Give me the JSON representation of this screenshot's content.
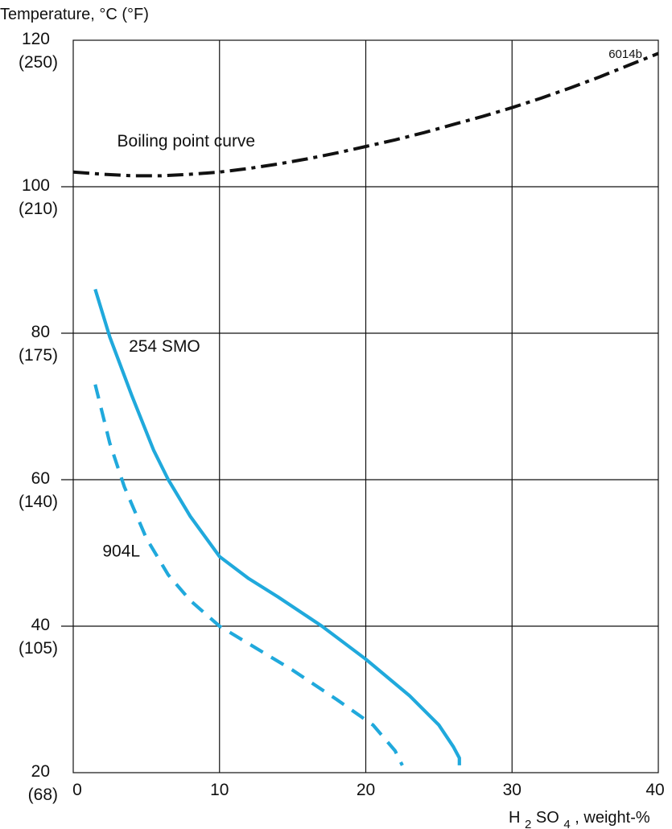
{
  "chart_data": {
    "type": "line",
    "title": "",
    "ylabel": "Temperature, °C (°F)",
    "xlabel_parts": {
      "prefix": "H",
      "subscript_1": "2",
      "middle": "SO",
      "subscript_2": "4",
      "suffix": ", weight-%"
    },
    "xlim": [
      0,
      40
    ],
    "ylim": [
      20,
      120
    ],
    "grid": true,
    "x_ticks": [
      {
        "value": 0,
        "label": "0"
      },
      {
        "value": 10,
        "label": "10"
      },
      {
        "value": 20,
        "label": "20"
      },
      {
        "value": 30,
        "label": "30"
      },
      {
        "value": 40,
        "label": "40"
      }
    ],
    "y_ticks": [
      {
        "value": 120,
        "label": "120",
        "fahrenheit": "(250)"
      },
      {
        "value": 100,
        "label": "100",
        "fahrenheit": "(210)"
      },
      {
        "value": 80,
        "label": "80",
        "fahrenheit": "(175)"
      },
      {
        "value": 60,
        "label": "60",
        "fahrenheit": "(140)"
      },
      {
        "value": 40,
        "label": "40",
        "fahrenheit": "(105)"
      },
      {
        "value": 20,
        "label": "20",
        "fahrenheit": "(68)"
      }
    ],
    "series": [
      {
        "id": "boiling",
        "name": "Boiling point curve",
        "color": "#111111",
        "line_style": "dash-dot",
        "x": [
          0,
          2,
          4,
          6,
          8,
          10,
          12,
          14,
          16,
          18,
          20,
          22,
          24,
          26,
          28,
          30,
          32,
          34,
          36,
          38,
          40
        ],
        "y": [
          102.0,
          101.7,
          101.5,
          101.5,
          101.7,
          102.0,
          102.5,
          103.1,
          103.8,
          104.6,
          105.5,
          106.4,
          107.4,
          108.5,
          109.6,
          110.8,
          112.1,
          113.5,
          115.0,
          116.6,
          118.2
        ]
      },
      {
        "id": "smo254",
        "name": "254 SMO",
        "color": "#20a9dc",
        "line_style": "solid",
        "x": [
          1.5,
          2.5,
          4.0,
          5.5,
          6.5,
          8.0,
          10.0,
          12.0,
          14.0,
          17.0,
          20.0,
          23.0,
          25.0,
          26.0,
          26.4,
          26.4
        ],
        "y": [
          86.0,
          79.5,
          71.5,
          64.0,
          60.0,
          55.0,
          49.5,
          46.5,
          44.0,
          40.0,
          35.5,
          30.5,
          26.5,
          23.5,
          22.0,
          21.0
        ]
      },
      {
        "id": "l904",
        "name": "904L",
        "color": "#20a9dc",
        "line_style": "dashed",
        "x": [
          1.5,
          2.5,
          3.5,
          5.0,
          6.5,
          8.0,
          10.0,
          12.5,
          15.0,
          18.0,
          20.5,
          22.0,
          22.5
        ],
        "y": [
          73.0,
          65.0,
          59.0,
          52.0,
          47.0,
          43.5,
          40.0,
          37.0,
          34.0,
          30.0,
          26.5,
          23.0,
          21.0
        ]
      }
    ],
    "annotations": [
      {
        "id": "boiling",
        "text": "Boiling point curve",
        "x": 3.0,
        "y": 105.5
      },
      {
        "id": "smo254",
        "text": "254 SMO",
        "x": 3.8,
        "y": 77.5
      },
      {
        "id": "l904",
        "text": "904L",
        "x": 2.0,
        "y": 49.5
      },
      {
        "id": "code",
        "text": "6014b",
        "x": 36.6,
        "y": 117.6
      }
    ]
  }
}
